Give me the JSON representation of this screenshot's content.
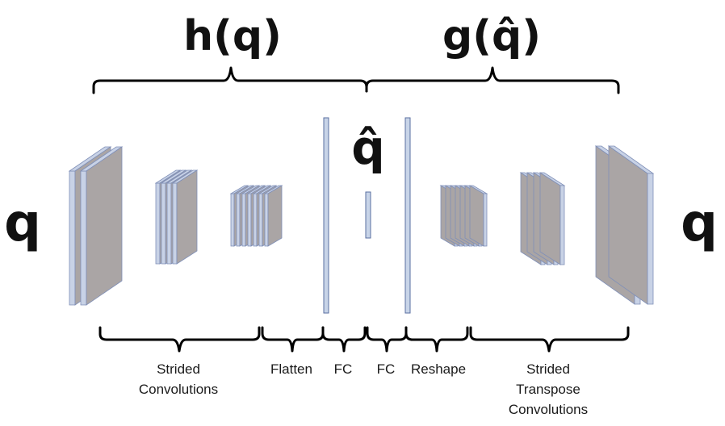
{
  "top_labels": {
    "encoder": "h(q)",
    "decoder": "g(q̂)"
  },
  "symbols": {
    "input": "q",
    "output": "q",
    "latent": "q̂"
  },
  "bottom_labels": {
    "strided_conv": [
      "Strided",
      "Convolutions"
    ],
    "flatten": "Flatten",
    "fc_left": "FC",
    "fc_right": "FC",
    "reshape": "Reshape",
    "strided_transpose": [
      "Strided",
      "Transpose",
      "Convolutions"
    ]
  },
  "colors": {
    "layer_face": "#aaa5a5",
    "layer_edge": "#c8d2e6",
    "layer_outline": "#8090b8",
    "fc_bar": "#c8d4e8",
    "fc_outline": "#5a6fa0"
  }
}
